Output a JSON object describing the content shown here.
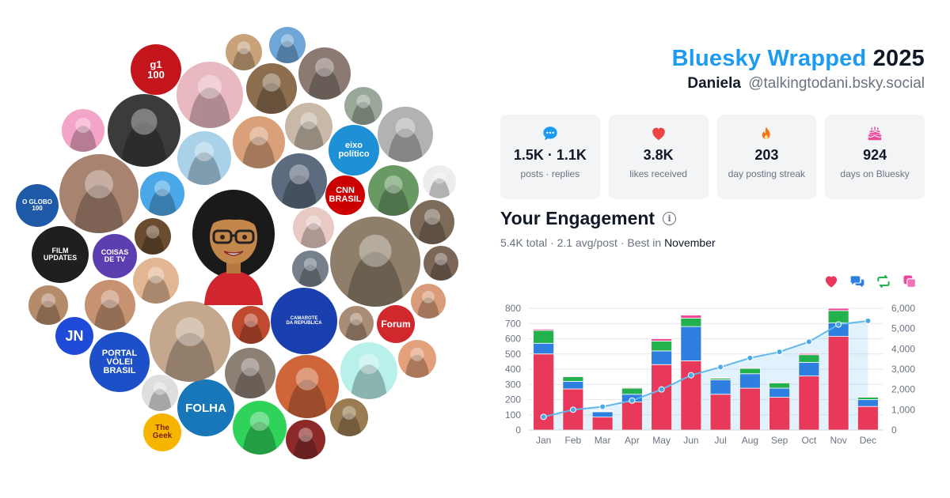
{
  "header": {
    "brand": "Bluesky Wrapped",
    "year": "2025",
    "name": "Daniela",
    "handle": "@talkingtodani.bsky.social"
  },
  "stats": [
    {
      "value": "1.5K · 1.1K",
      "label": "posts · replies",
      "icon": "speech-bubble-icon",
      "color": "#1d9bf0"
    },
    {
      "value": "3.8K",
      "label": "likes received",
      "icon": "heart-icon",
      "color": "#ef4444"
    },
    {
      "value": "203",
      "label": "day posting streak",
      "icon": "flame-icon",
      "color": "#f97316"
    },
    {
      "value": "924",
      "label": "days on Bluesky",
      "icon": "cake-icon",
      "color": "#ec4899"
    }
  ],
  "engagement": {
    "title": "Your Engagement",
    "total": "5.4K",
    "total_label": "total",
    "avg": "2.1 avg/post",
    "best_prefix": "Best in",
    "best_month": "November",
    "sep": "·"
  },
  "legend": [
    {
      "icon": "heart-icon",
      "color": "#e8395a"
    },
    {
      "icon": "reply-bubbles-icon",
      "color": "#2f7fe0"
    },
    {
      "icon": "repost-icon",
      "color": "#22b14c"
    },
    {
      "icon": "quote-icon",
      "color": "#ec4899"
    }
  ],
  "collage": [
    {
      "label": "g1\n100",
      "bg": "#c4151c",
      "fg": "#ffffff"
    },
    {
      "label": "O GLOBO\n100",
      "bg": "#1e5aa8",
      "fg": "#ffffff"
    },
    {
      "label": "FILM\nUPDATES",
      "bg": "#1f1f1f",
      "fg": "#ffffff"
    },
    {
      "label": "COISAS\nDE TV",
      "bg": "#5b3fb0",
      "fg": "#ffffff"
    },
    {
      "label": "JN",
      "bg": "#1f4bd8",
      "fg": "#ffffff"
    },
    {
      "label": "PORTAL\nVÔLEI\nBRASIL",
      "bg": "#1d4fc8",
      "fg": "#ffffff"
    },
    {
      "label": "The\nGeek",
      "bg": "#f7b500",
      "fg": "#7a1f10"
    },
    {
      "label": "FOLHA",
      "bg": "#1877b8",
      "fg": "#ffffff"
    },
    {
      "label": "eixo\npolítico",
      "bg": "#1e90d6",
      "fg": "#ffffff"
    },
    {
      "label": "CNN\nBRASIL",
      "bg": "#cc0000",
      "fg": "#ffffff"
    },
    {
      "label": "CAMAROTE\nDA REPÚBLICA",
      "bg": "#1a3fae",
      "fg": "#ffffff"
    },
    {
      "label": "Forum",
      "bg": "#d1282e",
      "fg": "#ffffff"
    }
  ],
  "chart_data": {
    "type": "bar",
    "categories": [
      "Jan",
      "Feb",
      "Mar",
      "Apr",
      "May",
      "Jun",
      "Jul",
      "Aug",
      "Sep",
      "Oct",
      "Nov",
      "Dec"
    ],
    "series": [
      {
        "values": [
          500,
          270,
          85,
          185,
          430,
          455,
          235,
          275,
          215,
          355,
          615,
          155
        ],
        "color": "#e8395a"
      },
      {
        "values": [
          70,
          50,
          35,
          50,
          90,
          225,
          95,
          95,
          60,
          90,
          90,
          45
        ],
        "color": "#2f7fe0"
      },
      {
        "values": [
          85,
          30,
          5,
          40,
          65,
          55,
          10,
          35,
          35,
          50,
          80,
          15
        ],
        "color": "#22b14c"
      },
      {
        "values": [
          8,
          5,
          3,
          5,
          15,
          20,
          5,
          5,
          5,
          8,
          15,
          5
        ],
        "color": "#ec4899"
      }
    ],
    "cumulative": {
      "values": [
        650,
        1000,
        1150,
        1450,
        2000,
        2700,
        3100,
        3550,
        3850,
        4350,
        5200,
        5380
      ],
      "color": "#60b8ec"
    },
    "ylim": [
      0,
      800
    ],
    "yticks": [
      "0",
      "100",
      "200",
      "300",
      "400",
      "500",
      "600",
      "700",
      "800"
    ],
    "y2lim": [
      0,
      6000
    ],
    "y2ticks": [
      "0",
      "1,000",
      "2,000",
      "3,000",
      "4,000",
      "5,000",
      "6,000"
    ],
    "grid": true
  }
}
